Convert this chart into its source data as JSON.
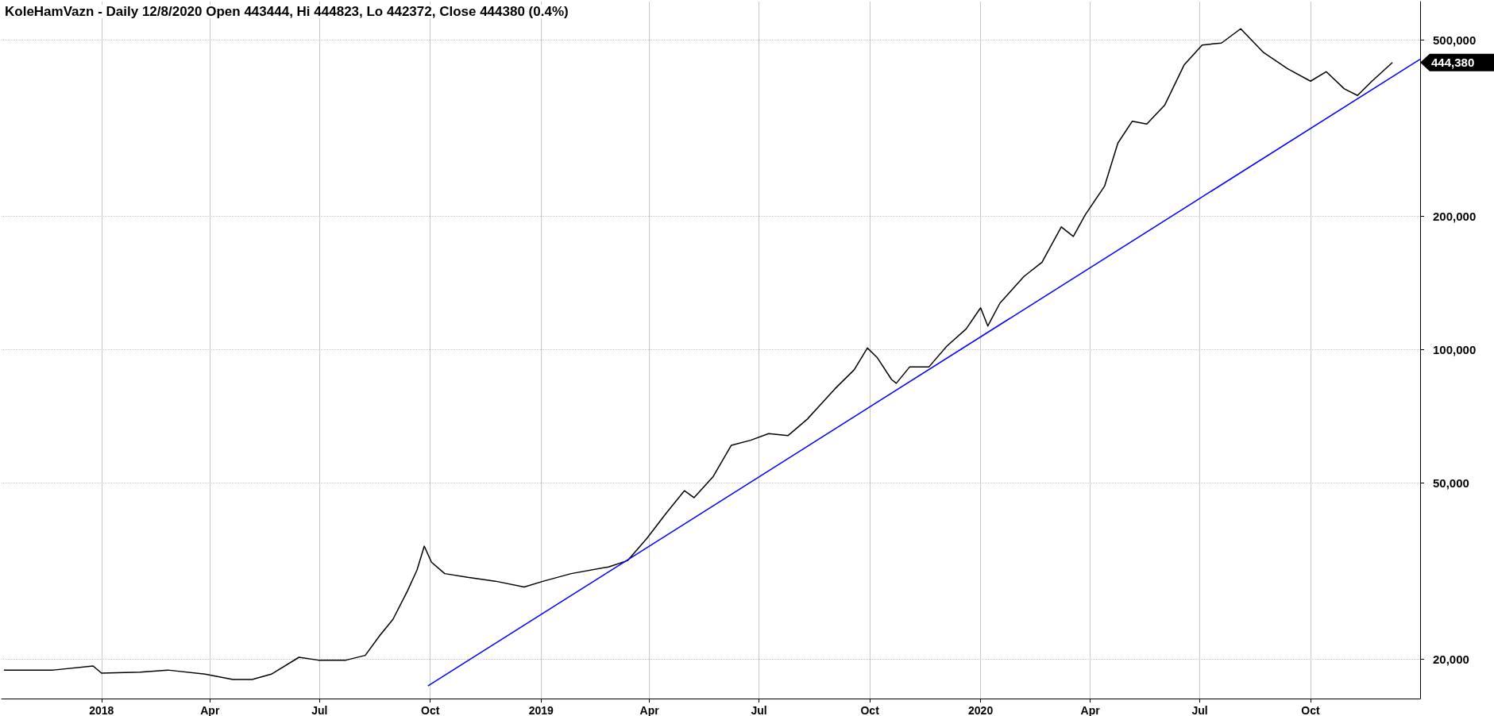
{
  "chart_data": {
    "type": "line",
    "title": "KoleHamVazn - Daily 12/8/2020 Open 443444, Hi 444823, Lo 442372, Close 444380 (0.4%)",
    "log": "y",
    "grid": true,
    "marker": "none",
    "line_style": "solid",
    "xlim": [
      "2017-10-10",
      "2020-12-31"
    ],
    "xticks": [
      {
        "value": "2018-01-01",
        "label": "2018"
      },
      {
        "value": "2018-04-01",
        "label": "Apr"
      },
      {
        "value": "2018-07-01",
        "label": "Jul"
      },
      {
        "value": "2018-10-01",
        "label": "Oct"
      },
      {
        "value": "2019-01-01",
        "label": "2019"
      },
      {
        "value": "2019-04-01",
        "label": "Apr"
      },
      {
        "value": "2019-07-01",
        "label": "Jul"
      },
      {
        "value": "2019-10-01",
        "label": "Oct"
      },
      {
        "value": "2020-01-01",
        "label": "2020"
      },
      {
        "value": "2020-04-01",
        "label": "Apr"
      },
      {
        "value": "2020-07-01",
        "label": "Jul"
      },
      {
        "value": "2020-10-01",
        "label": "Oct"
      }
    ],
    "ylim": [
      16300,
      610000
    ],
    "yticks": [
      {
        "value": 20000,
        "label": "20,000"
      },
      {
        "value": 50000,
        "label": "50,000"
      },
      {
        "value": 100000,
        "label": "100,000"
      },
      {
        "value": 200000,
        "label": "200,000"
      },
      {
        "value": 500000,
        "label": "500,000"
      }
    ],
    "series": [
      {
        "color": "#000000",
        "x": [
          "2017-10-12",
          "2017-11-22",
          "2017-12-25",
          "2018-01-01",
          "2018-02-02",
          "2018-02-25",
          "2018-03-28",
          "2018-04-20",
          "2018-05-06",
          "2018-05-22",
          "2018-06-14",
          "2018-06-30",
          "2018-07-23",
          "2018-08-08",
          "2018-08-20",
          "2018-08-31",
          "2018-09-12",
          "2018-09-20",
          "2018-09-26",
          "2018-10-02",
          "2018-10-13",
          "2018-11-01",
          "2018-11-24",
          "2018-12-18",
          "2019-01-03",
          "2019-01-26",
          "2019-02-26",
          "2019-03-14",
          "2019-03-30",
          "2019-04-14",
          "2019-04-30",
          "2019-05-08",
          "2019-05-24",
          "2019-06-08",
          "2019-06-24",
          "2019-07-09",
          "2019-07-25",
          "2019-08-10",
          "2019-09-02",
          "2019-09-18",
          "2019-09-29",
          "2019-10-07",
          "2019-10-19",
          "2019-10-23",
          "2019-11-03",
          "2019-11-19",
          "2019-12-04",
          "2019-12-20",
          "2020-01-01",
          "2020-01-07",
          "2020-01-17",
          "2020-02-06",
          "2020-02-21",
          "2020-03-08",
          "2020-03-18",
          "2020-03-28",
          "2020-04-13",
          "2020-04-24",
          "2020-05-06",
          "2020-05-18",
          "2020-06-02",
          "2020-06-18",
          "2020-07-03",
          "2020-07-19",
          "2020-08-04",
          "2020-08-23",
          "2020-09-12",
          "2020-10-01",
          "2020-10-14",
          "2020-10-29",
          "2020-11-09",
          "2020-11-21",
          "2020-12-08"
        ],
        "values": [
          18900,
          18900,
          19300,
          18600,
          18700,
          18900,
          18500,
          18000,
          18000,
          18500,
          20200,
          19900,
          19900,
          20400,
          22600,
          24600,
          28500,
          31800,
          36000,
          33100,
          31200,
          30600,
          30000,
          29100,
          30000,
          31200,
          32300,
          33400,
          37500,
          42400,
          48000,
          46300,
          51700,
          60800,
          62400,
          64600,
          63900,
          69600,
          81500,
          90000,
          100800,
          96000,
          85600,
          83900,
          91300,
          91300,
          101800,
          111300,
          124200,
          113000,
          127200,
          146200,
          157400,
          189100,
          180000,
          201600,
          233900,
          292400,
          327600,
          322800,
          356500,
          438800,
          486900,
          491700,
          529600,
          468000,
          430200,
          403400,
          423800,
          387700,
          374500,
          403400,
          444380
        ]
      },
      {
        "color": "#0000ff",
        "x": [
          "2018-09-29",
          "2020-12-31"
        ],
        "values": [
          17400,
          452000
        ]
      }
    ],
    "annotations": [
      {
        "text": "444,380",
        "x": "2020-12-31",
        "y": 444380
      }
    ]
  }
}
